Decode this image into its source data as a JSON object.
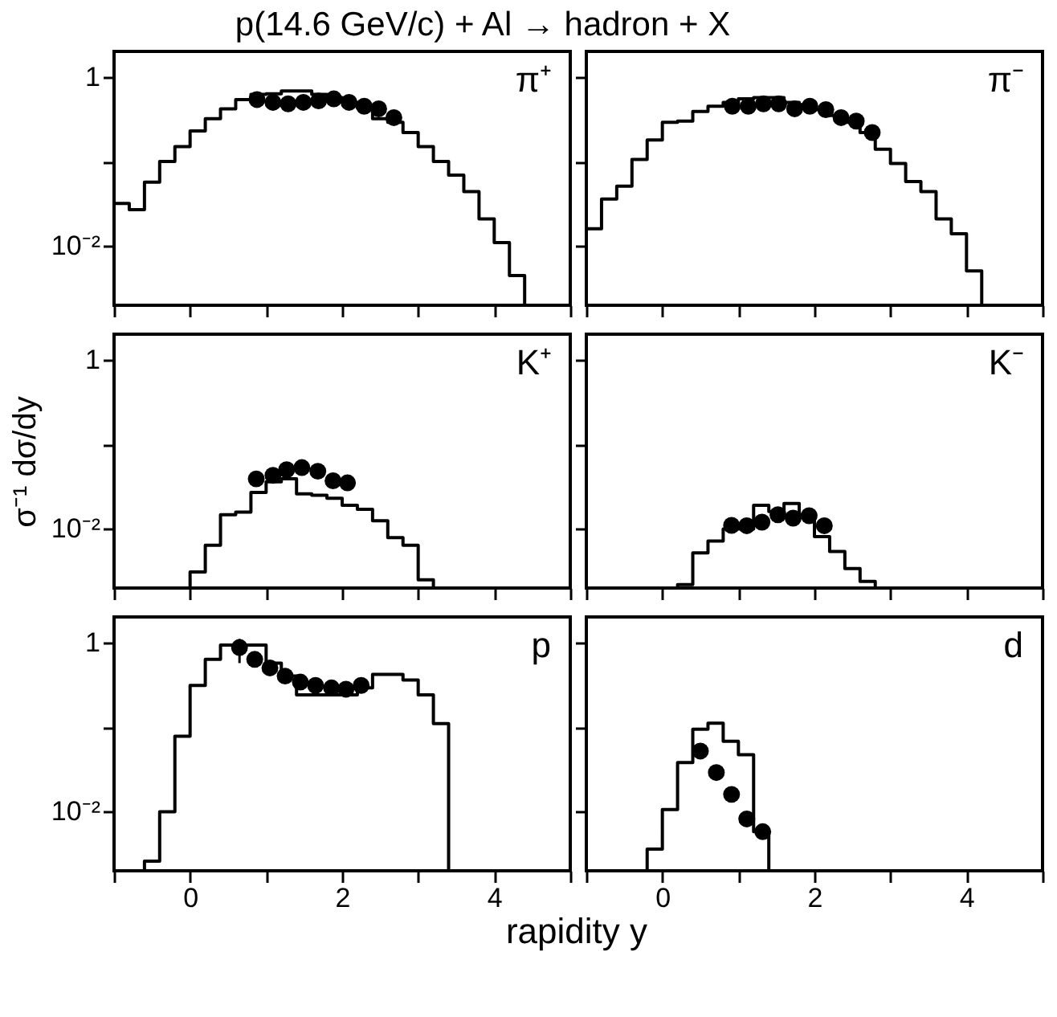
{
  "chart_data": [
    {
      "type": "histogram",
      "title": "p(14.6 GeV/c) + Al → hadron + X",
      "annotations": [
        "π⁺"
      ],
      "tick_labels": "y",
      "xlim": [
        -1,
        5
      ],
      "ylim": [
        0.002,
        2
      ],
      "log": "y",
      "xticks": [
        {
          "value": -1,
          "label": null
        },
        {
          "value": 0,
          "label": null
        },
        {
          "value": 1,
          "label": null
        },
        {
          "value": 2,
          "label": null
        },
        {
          "value": 3,
          "label": null
        },
        {
          "value": 4,
          "label": null
        },
        {
          "value": 5,
          "label": null
        }
      ],
      "yticks": [
        {
          "value": 1,
          "label": "1"
        },
        {
          "value": 0.1,
          "label": null
        },
        {
          "value": 0.01,
          "label": "10⁻²"
        }
      ],
      "series": [
        {
          "type": "histogram",
          "color": "#000000",
          "bins": [
            -1.0,
            -0.8,
            -0.6,
            -0.4,
            -0.2,
            0.0,
            0.2,
            0.4,
            0.6,
            0.8,
            1.0,
            1.2,
            1.4,
            1.6,
            1.8,
            2.0,
            2.2,
            2.4,
            2.6,
            2.8,
            3.0,
            3.2,
            3.4,
            3.6,
            3.8,
            4.0,
            4.2,
            4.4
          ],
          "values": [
            0.032,
            0.027,
            0.057,
            0.1,
            0.15,
            0.23,
            0.32,
            0.42,
            0.54,
            0.62,
            0.63,
            0.68,
            0.68,
            0.62,
            0.57,
            0.5,
            0.43,
            0.32,
            0.29,
            0.22,
            0.15,
            0.1,
            0.069,
            0.044,
            0.021,
            0.011,
            0.0045
          ]
        },
        {
          "type": "scatter",
          "marker": "circle",
          "color": "#000000",
          "x": [
            0.88,
            1.09,
            1.29,
            1.49,
            1.69,
            1.89,
            2.09,
            2.29,
            2.48,
            2.68
          ],
          "values": [
            0.54,
            0.5,
            0.48,
            0.5,
            0.52,
            0.55,
            0.5,
            0.45,
            0.42,
            0.33
          ]
        }
      ]
    },
    {
      "type": "histogram",
      "annotations": [
        "π⁻"
      ],
      "tick_labels": false,
      "xlim": [
        -1,
        5
      ],
      "ylim": [
        0.002,
        2
      ],
      "log": "y",
      "xticks": [
        {
          "value": -1,
          "label": null
        },
        {
          "value": 0,
          "label": null
        },
        {
          "value": 1,
          "label": null
        },
        {
          "value": 2,
          "label": null
        },
        {
          "value": 3,
          "label": null
        },
        {
          "value": 4,
          "label": null
        },
        {
          "value": 5,
          "label": null
        }
      ],
      "yticks": [
        {
          "value": 1,
          "label": null
        },
        {
          "value": 0.1,
          "label": null
        },
        {
          "value": 0.01,
          "label": null
        }
      ],
      "series": [
        {
          "type": "histogram",
          "color": "#000000",
          "bins": [
            -1.0,
            -0.8,
            -0.6,
            -0.4,
            -0.2,
            0.0,
            0.2,
            0.4,
            0.6,
            0.8,
            1.0,
            1.2,
            1.4,
            1.6,
            1.8,
            2.0,
            2.2,
            2.4,
            2.6,
            2.8,
            3.0,
            3.2,
            3.4,
            3.6,
            3.8,
            4.0,
            4.2
          ],
          "values": [
            0.016,
            0.036,
            0.051,
            0.106,
            0.18,
            0.29,
            0.3,
            0.39,
            0.45,
            0.5,
            0.55,
            0.57,
            0.57,
            0.5,
            0.47,
            0.41,
            0.35,
            0.29,
            0.22,
            0.14,
            0.095,
            0.058,
            0.044,
            0.021,
            0.014,
            0.0051
          ]
        },
        {
          "type": "scatter",
          "marker": "circle",
          "color": "#000000",
          "x": [
            0.92,
            1.13,
            1.33,
            1.53,
            1.74,
            1.94,
            2.15,
            2.35,
            2.55,
            2.76
          ],
          "values": [
            0.45,
            0.45,
            0.48,
            0.48,
            0.42,
            0.45,
            0.41,
            0.33,
            0.3,
            0.22
          ]
        }
      ]
    },
    {
      "type": "histogram",
      "ylabel": "σ⁻¹ dσ/dy",
      "annotations": [
        "K⁺"
      ],
      "tick_labels": "y",
      "xlim": [
        -1,
        5
      ],
      "ylim": [
        0.002,
        2
      ],
      "log": "y",
      "xticks": [
        {
          "value": -1,
          "label": null
        },
        {
          "value": 0,
          "label": null
        },
        {
          "value": 1,
          "label": null
        },
        {
          "value": 2,
          "label": null
        },
        {
          "value": 3,
          "label": null
        },
        {
          "value": 4,
          "label": null
        },
        {
          "value": 5,
          "label": null
        }
      ],
      "yticks": [
        {
          "value": 1,
          "label": "1"
        },
        {
          "value": 0.1,
          "label": null
        },
        {
          "value": 0.01,
          "label": "10⁻²"
        }
      ],
      "series": [
        {
          "type": "histogram",
          "color": "#000000",
          "bins": [
            0.0,
            0.2,
            0.4,
            0.6,
            0.8,
            1.0,
            1.2,
            1.4,
            1.6,
            1.8,
            2.0,
            2.2,
            2.4,
            2.6,
            2.8,
            3.0,
            3.2
          ],
          "values": [
            0.0031,
            0.0064,
            0.0147,
            0.0158,
            0.027,
            0.036,
            0.039,
            0.026,
            0.025,
            0.023,
            0.019,
            0.017,
            0.0125,
            0.0079,
            0.0064,
            0.0025
          ]
        },
        {
          "type": "scatter",
          "marker": "circle",
          "color": "#000000",
          "x": [
            0.87,
            1.09,
            1.27,
            1.47,
            1.68,
            1.88,
            2.07
          ],
          "values": [
            0.039,
            0.043,
            0.05,
            0.053,
            0.048,
            0.037,
            0.035
          ]
        }
      ]
    },
    {
      "type": "histogram",
      "annotations": [
        "K⁻"
      ],
      "tick_labels": false,
      "xlim": [
        -1,
        5
      ],
      "ylim": [
        0.002,
        2
      ],
      "log": "y",
      "xticks": [
        {
          "value": -1,
          "label": null
        },
        {
          "value": 0,
          "label": null
        },
        {
          "value": 1,
          "label": null
        },
        {
          "value": 2,
          "label": null
        },
        {
          "value": 3,
          "label": null
        },
        {
          "value": 4,
          "label": null
        },
        {
          "value": 5,
          "label": null
        }
      ],
      "yticks": [
        {
          "value": 1,
          "label": null
        },
        {
          "value": 0.1,
          "label": null
        },
        {
          "value": 0.01,
          "label": null
        }
      ],
      "series": [
        {
          "type": "histogram",
          "color": "#000000",
          "bins": [
            0.2,
            0.4,
            0.6,
            0.8,
            1.0,
            1.2,
            1.4,
            1.6,
            1.8,
            2.0,
            2.2,
            2.4,
            2.6,
            2.8
          ],
          "values": [
            0.0022,
            0.0052,
            0.0072,
            0.01,
            0.01,
            0.019,
            0.016,
            0.02,
            0.0147,
            0.0081,
            0.0054,
            0.0034,
            0.0024
          ]
        },
        {
          "type": "scatter",
          "marker": "circle",
          "color": "#000000",
          "x": [
            0.91,
            1.11,
            1.31,
            1.52,
            1.72,
            1.93,
            2.13
          ],
          "values": [
            0.011,
            0.0109,
            0.012,
            0.0147,
            0.0134,
            0.0143,
            0.0109
          ]
        }
      ]
    },
    {
      "type": "histogram",
      "xlabel": "rapidity y",
      "annotations": [
        "p"
      ],
      "xlim": [
        -1,
        5
      ],
      "ylim": [
        0.002,
        2
      ],
      "log": "y",
      "xticks": [
        {
          "value": -1,
          "label": null
        },
        0,
        {
          "value": 1,
          "label": null
        },
        2,
        {
          "value": 3,
          "label": null
        },
        4,
        {
          "value": 5,
          "label": null
        }
      ],
      "yticks": [
        {
          "value": 1,
          "label": "1"
        },
        {
          "value": 0.1,
          "label": null
        },
        {
          "value": 0.01,
          "label": "10⁻²"
        }
      ],
      "series": [
        {
          "type": "histogram",
          "color": "#000000",
          "bins": [
            -0.6,
            -0.4,
            -0.2,
            0.0,
            0.2,
            0.4,
            0.6,
            0.8,
            1.0,
            1.2,
            1.4,
            1.6,
            1.8,
            2.0,
            2.2,
            2.4,
            2.6,
            2.8,
            3.0,
            3.2,
            3.4
          ],
          "values": [
            0.0026,
            0.01,
            0.078,
            0.31,
            0.63,
            0.93,
            0.93,
            0.93,
            0.57,
            0.4,
            0.24,
            0.24,
            0.24,
            0.24,
            0.29,
            0.42,
            0.42,
            0.36,
            0.24,
            0.11
          ]
        },
        {
          "type": "scatter",
          "marker": "circle",
          "color": "#000000",
          "x": [
            0.65,
            0.85,
            1.05,
            1.25,
            1.45,
            1.65,
            1.86,
            2.05,
            2.25
          ],
          "values": [
            0.87,
            0.63,
            0.5,
            0.4,
            0.34,
            0.31,
            0.29,
            0.28,
            0.31
          ],
          "errors": [
            [
              0.57,
              1.1
            ],
            null,
            null,
            null,
            null,
            null,
            null,
            null,
            null
          ]
        }
      ]
    },
    {
      "type": "histogram",
      "annotations": [
        "d"
      ],
      "tick_labels": "x",
      "xlim": [
        -1,
        5
      ],
      "ylim": [
        0.002,
        2
      ],
      "log": "y",
      "xticks": [
        {
          "value": -1,
          "label": null
        },
        0,
        {
          "value": 1,
          "label": null
        },
        2,
        {
          "value": 3,
          "label": null
        },
        4,
        {
          "value": 5,
          "label": null
        }
      ],
      "yticks": [
        {
          "value": 1,
          "label": null
        },
        {
          "value": 0.1,
          "label": null
        },
        {
          "value": 0.01,
          "label": null
        }
      ],
      "series": [
        {
          "type": "histogram",
          "color": "#000000",
          "bins": [
            -0.2,
            0.0,
            0.2,
            0.4,
            0.6,
            0.8,
            1.0,
            1.2,
            1.4
          ],
          "values": [
            0.0036,
            0.0106,
            0.038,
            0.094,
            0.111,
            0.068,
            0.047,
            0.0058
          ]
        },
        {
          "type": "scatter",
          "marker": "circle",
          "color": "#000000",
          "x": [
            0.5,
            0.71,
            0.91,
            1.11,
            1.32
          ],
          "values": [
            0.052,
            0.029,
            0.016,
            0.0082,
            0.0058
          ]
        }
      ]
    }
  ]
}
